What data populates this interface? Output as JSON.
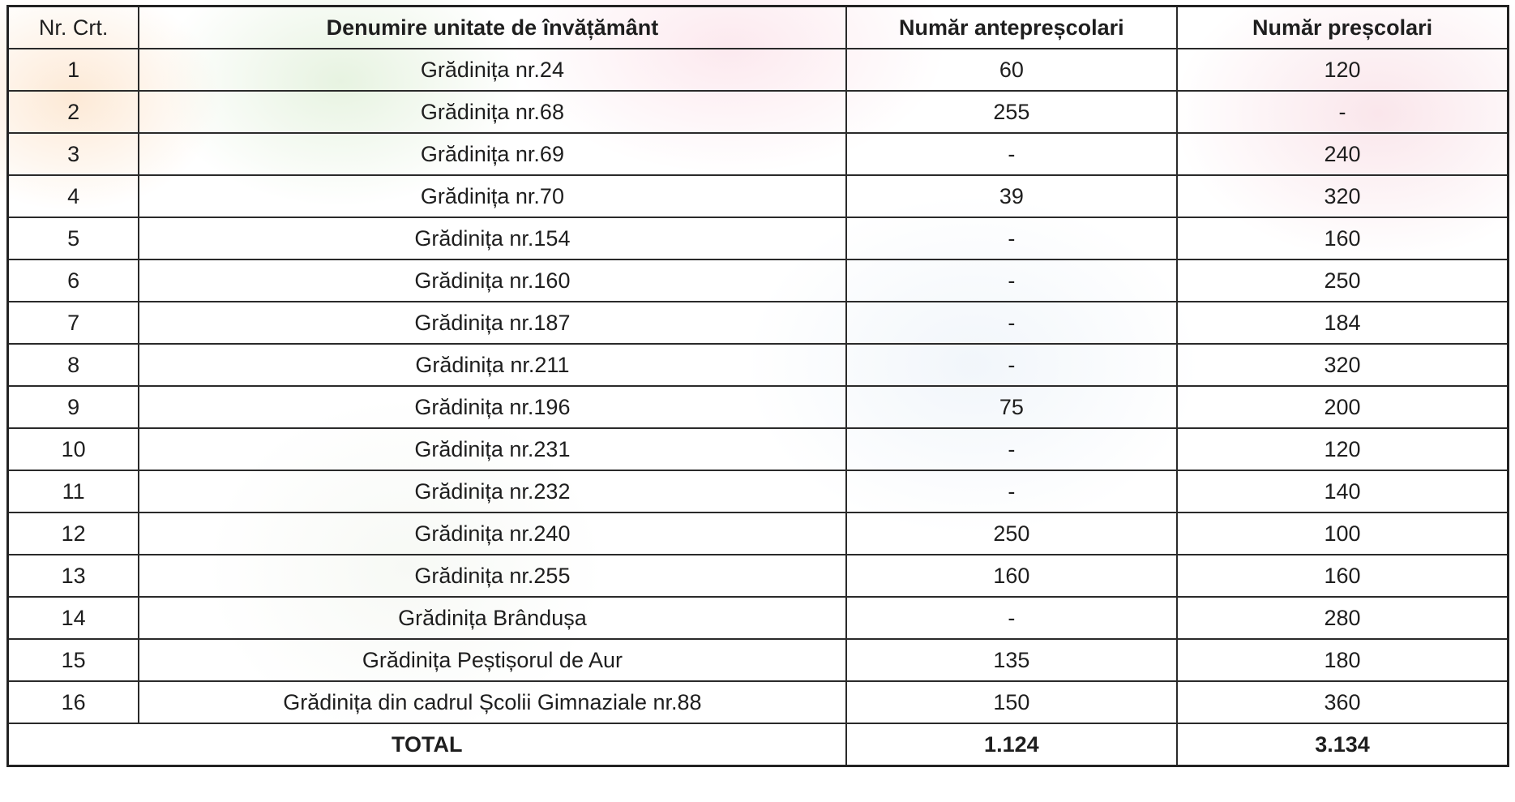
{
  "table": {
    "headers": [
      "Nr. Crt.",
      "Denumire unitate de învățământ",
      "Număr antepreșcolari",
      "Număr preșcolari"
    ],
    "rows": [
      [
        "1",
        "Grădinița nr.24",
        "60",
        "120"
      ],
      [
        "2",
        "Grădinița nr.68",
        "255",
        "-"
      ],
      [
        "3",
        "Grădinița nr.69",
        "-",
        "240"
      ],
      [
        "4",
        "Grădinița nr.70",
        "39",
        "320"
      ],
      [
        "5",
        "Grădinița nr.154",
        "-",
        "160"
      ],
      [
        "6",
        "Grădinița nr.160",
        "-",
        "250"
      ],
      [
        "7",
        "Grădinița nr.187",
        "-",
        "184"
      ],
      [
        "8",
        "Grădinița nr.211",
        "-",
        "320"
      ],
      [
        "9",
        "Grădinița nr.196",
        "75",
        "200"
      ],
      [
        "10",
        "Grădinița nr.231",
        "-",
        "120"
      ],
      [
        "11",
        "Grădinița nr.232",
        "-",
        "140"
      ],
      [
        "12",
        "Grădinița nr.240",
        "250",
        "100"
      ],
      [
        "13",
        "Grădinița nr.255",
        "160",
        "160"
      ],
      [
        "14",
        "Grădinița Brândușa",
        "-",
        "280"
      ],
      [
        "15",
        "Grădinița Peștișorul de Aur",
        "135",
        "180"
      ],
      [
        "16",
        "Grădinița din cadrul Școlii Gimnaziale nr.88",
        "150",
        "360"
      ]
    ],
    "total": {
      "label": "TOTAL",
      "antepreschool": "1.124",
      "preschool": "3.134"
    }
  }
}
